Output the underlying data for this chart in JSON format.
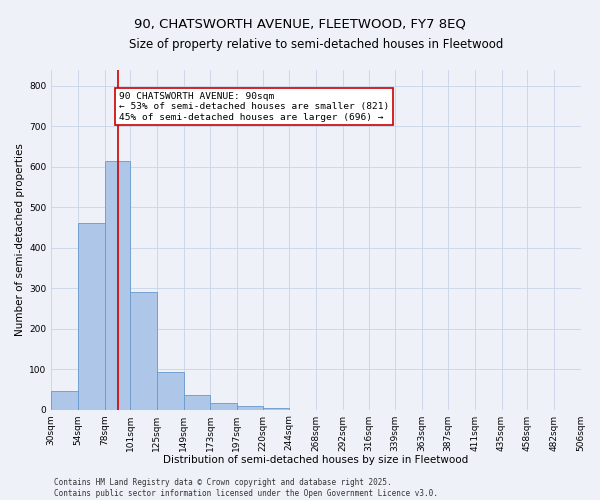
{
  "title": "90, CHATSWORTH AVENUE, FLEETWOOD, FY7 8EQ",
  "subtitle": "Size of property relative to semi-detached houses in Fleetwood",
  "xlabel": "Distribution of semi-detached houses by size in Fleetwood",
  "ylabel": "Number of semi-detached properties",
  "bin_edges": [
    30,
    54,
    78,
    101,
    125,
    149,
    173,
    197,
    220,
    244,
    268,
    292,
    316,
    339,
    363,
    387,
    411,
    435,
    458,
    482,
    506
  ],
  "bar_heights": [
    45,
    460,
    615,
    290,
    93,
    35,
    17,
    8,
    5,
    0,
    0,
    0,
    0,
    0,
    0,
    0,
    0,
    0,
    0,
    0
  ],
  "bar_color": "#aec6e8",
  "bar_edge_color": "#6699cc",
  "subject_size": 90,
  "red_line_color": "#cc0000",
  "annotation_text": "90 CHATSWORTH AVENUE: 90sqm\n← 53% of semi-detached houses are smaller (821)\n45% of semi-detached houses are larger (696) →",
  "annotation_box_color": "#ffffff",
  "annotation_box_edge": "#cc0000",
  "ylim": [
    0,
    840
  ],
  "yticks": [
    0,
    100,
    200,
    300,
    400,
    500,
    600,
    700,
    800
  ],
  "footer_line1": "Contains HM Land Registry data © Crown copyright and database right 2025.",
  "footer_line2": "Contains public sector information licensed under the Open Government Licence v3.0.",
  "background_color": "#eef2f8",
  "grid_color": "#c8d4e8",
  "title_fontsize": 9.5,
  "subtitle_fontsize": 8.5,
  "axis_label_fontsize": 7.5,
  "tick_fontsize": 6.5,
  "annotation_fontsize": 6.8,
  "footer_fontsize": 5.5
}
